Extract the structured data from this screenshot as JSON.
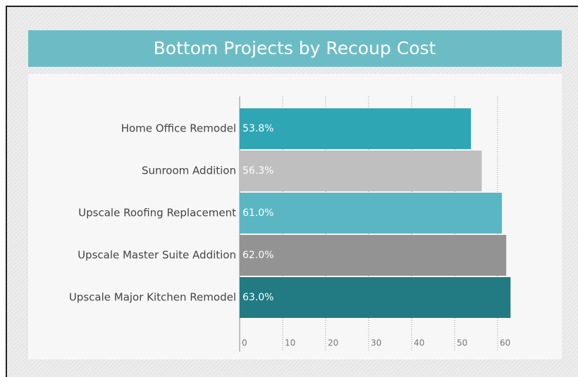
{
  "chart_data": {
    "type": "bar",
    "orientation": "horizontal",
    "title": "Bottom Projects by Recoup Cost",
    "categories": [
      "Home Office Remodel",
      "Sunroom Addition",
      "Upscale Roofing Replacement",
      "Upscale Master Suite Addition",
      "Upscale Major Kitchen Remodel"
    ],
    "values": [
      53.8,
      56.3,
      61.0,
      62.0,
      63.0
    ],
    "value_labels": [
      "53.8%",
      "56.3%",
      "61.0%",
      "62.0%",
      "63.0%"
    ],
    "colors": [
      "#2ea6b4",
      "#bfbfbf",
      "#5bb6c4",
      "#939393",
      "#227a83"
    ],
    "xlim": [
      0,
      65
    ],
    "xticks": [
      0,
      10,
      20,
      30,
      40,
      50,
      60
    ],
    "grid": true
  }
}
